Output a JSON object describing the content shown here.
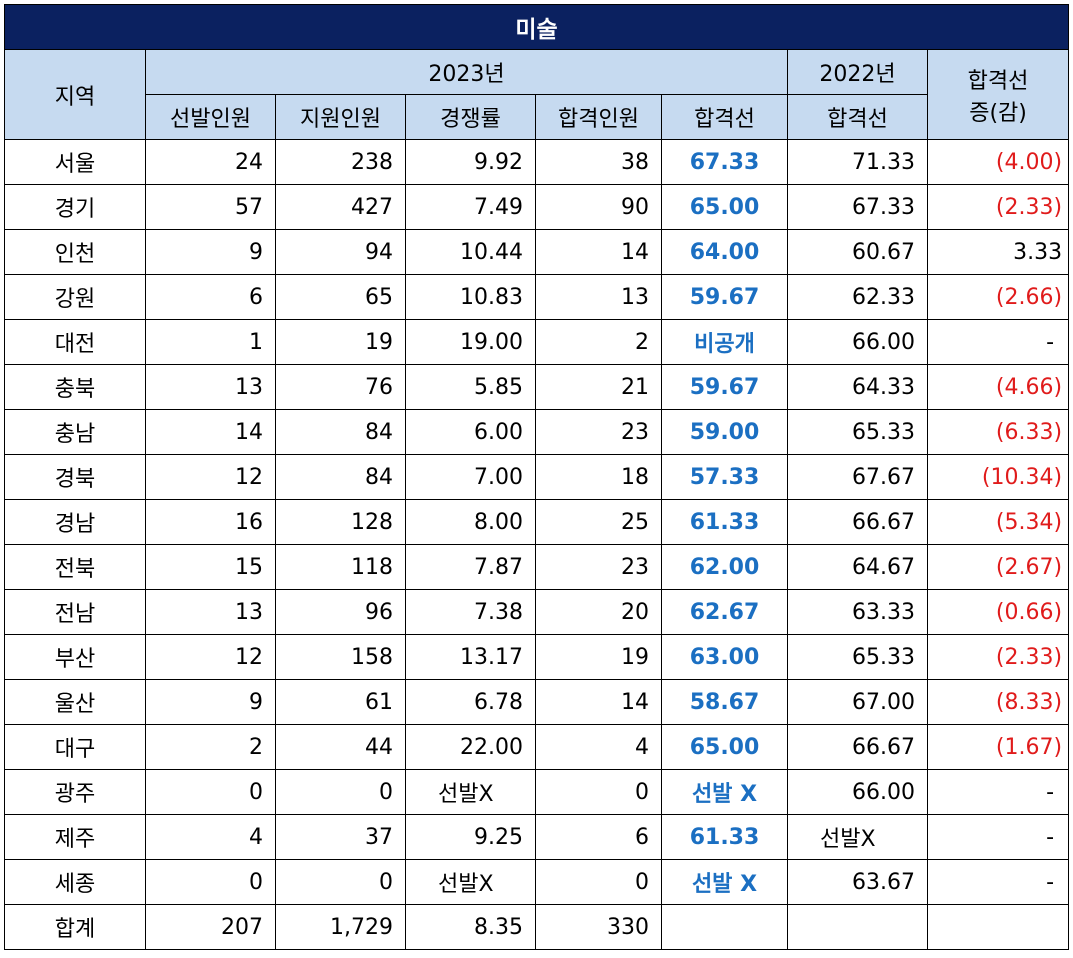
{
  "title": "미술",
  "header": {
    "region": "지역",
    "year2023": "2023년",
    "year2022": "2022년",
    "change_line1": "합격선",
    "change_line2": "증(감)",
    "cols2023": [
      "선발인원",
      "지원인원",
      "경쟁률",
      "합격인원",
      "합격선"
    ],
    "col2022": "합격선"
  },
  "rows": [
    {
      "region": "서울",
      "selected": "24",
      "applied": "238",
      "ratio": "9.92",
      "passed": "38",
      "cutoff": "67.33",
      "cutoff2022": "71.33",
      "change": "(4.00)",
      "negative": true
    },
    {
      "region": "경기",
      "selected": "57",
      "applied": "427",
      "ratio": "7.49",
      "passed": "90",
      "cutoff": "65.00",
      "cutoff2022": "67.33",
      "change": "(2.33)",
      "negative": true
    },
    {
      "region": "인천",
      "selected": "9",
      "applied": "94",
      "ratio": "10.44",
      "passed": "14",
      "cutoff": "64.00",
      "cutoff2022": "60.67",
      "change": "3.33",
      "negative": false
    },
    {
      "region": "강원",
      "selected": "6",
      "applied": "65",
      "ratio": "10.83",
      "passed": "13",
      "cutoff": "59.67",
      "cutoff2022": "62.33",
      "change": "(2.66)",
      "negative": true
    },
    {
      "region": "대전",
      "selected": "1",
      "applied": "19",
      "ratio": "19.00",
      "passed": "2",
      "cutoff": "비공개",
      "cutoff2022": "66.00",
      "change": "-",
      "negative": false
    },
    {
      "region": "충북",
      "selected": "13",
      "applied": "76",
      "ratio": "5.85",
      "passed": "21",
      "cutoff": "59.67",
      "cutoff2022": "64.33",
      "change": "(4.66)",
      "negative": true
    },
    {
      "region": "충남",
      "selected": "14",
      "applied": "84",
      "ratio": "6.00",
      "passed": "23",
      "cutoff": "59.00",
      "cutoff2022": "65.33",
      "change": "(6.33)",
      "negative": true
    },
    {
      "region": "경북",
      "selected": "12",
      "applied": "84",
      "ratio": "7.00",
      "passed": "18",
      "cutoff": "57.33",
      "cutoff2022": "67.67",
      "change": "(10.34)",
      "negative": true
    },
    {
      "region": "경남",
      "selected": "16",
      "applied": "128",
      "ratio": "8.00",
      "passed": "25",
      "cutoff": "61.33",
      "cutoff2022": "66.67",
      "change": "(5.34)",
      "negative": true
    },
    {
      "region": "전북",
      "selected": "15",
      "applied": "118",
      "ratio": "7.87",
      "passed": "23",
      "cutoff": "62.00",
      "cutoff2022": "64.67",
      "change": "(2.67)",
      "negative": true
    },
    {
      "region": "전남",
      "selected": "13",
      "applied": "96",
      "ratio": "7.38",
      "passed": "20",
      "cutoff": "62.67",
      "cutoff2022": "63.33",
      "change": "(0.66)",
      "negative": true
    },
    {
      "region": "부산",
      "selected": "12",
      "applied": "158",
      "ratio": "13.17",
      "passed": "19",
      "cutoff": "63.00",
      "cutoff2022": "65.33",
      "change": "(2.33)",
      "negative": true
    },
    {
      "region": "울산",
      "selected": "9",
      "applied": "61",
      "ratio": "6.78",
      "passed": "14",
      "cutoff": "58.67",
      "cutoff2022": "67.00",
      "change": "(8.33)",
      "negative": true
    },
    {
      "region": "대구",
      "selected": "2",
      "applied": "44",
      "ratio": "22.00",
      "passed": "4",
      "cutoff": "65.00",
      "cutoff2022": "66.67",
      "change": "(1.67)",
      "negative": true
    },
    {
      "region": "광주",
      "selected": "0",
      "applied": "0",
      "ratio": "선발X",
      "passed": "0",
      "cutoff": "선발 X",
      "cutoff2022": "66.00",
      "change": "-",
      "negative": false
    },
    {
      "region": "제주",
      "selected": "4",
      "applied": "37",
      "ratio": "9.25",
      "passed": "6",
      "cutoff": "61.33",
      "cutoff2022": "선발X",
      "change": "-",
      "negative": false
    },
    {
      "region": "세종",
      "selected": "0",
      "applied": "0",
      "ratio": "선발X",
      "passed": "0",
      "cutoff": "선발 X",
      "cutoff2022": "63.67",
      "change": "-",
      "negative": false
    }
  ],
  "total": {
    "region": "합계",
    "selected": "207",
    "applied": "1,729",
    "ratio": "8.35",
    "passed": "330",
    "cutoff": "",
    "cutoff2022": "",
    "change": ""
  },
  "colors": {
    "title_bg": "#0b2160",
    "header_bg": "#c6daf0",
    "cutoff_text": "#1b6fc2",
    "negative_text": "#e01b1b"
  }
}
